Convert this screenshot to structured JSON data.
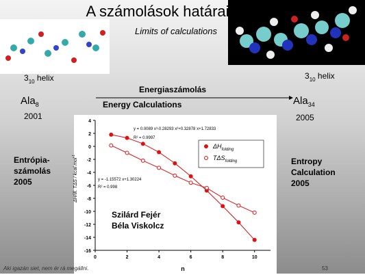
{
  "slide": {
    "title": "A számolások határai",
    "subtitle": "Limits of calculations",
    "left_helix": {
      "main": "3",
      "sub": "10",
      "after": " helix"
    },
    "right_helix": {
      "main": "3",
      "sub": "10",
      "after": " helix"
    },
    "arrow_label_hu": "Energiaszámolás",
    "arrow_label_en": "Energy Calculations",
    "left_molecule": {
      "main": "Ala",
      "sub": "8"
    },
    "left_year": "2001",
    "right_molecule": {
      "main": "Ala",
      "sub": "34"
    },
    "right_year": "2005",
    "left_note": [
      "Entrópia-",
      "számolás",
      "2005"
    ],
    "right_note": [
      "Entropy",
      "Calculation",
      "2005"
    ],
    "authors": [
      "Szilárd Fejér",
      "Béla Viskolcz"
    ],
    "footer": "Aki igazán siet, nem ér rá megállni.",
    "page_number": "53"
  },
  "chart_data": {
    "type": "scatter",
    "x_label": "n",
    "y_label": {
      "main": "ΔH/ill. TΔS / kcal mol",
      "sup": "-1"
    },
    "xlim": [
      0,
      11
    ],
    "xticks": [
      0,
      2,
      4,
      6,
      8,
      10
    ],
    "ylim": [
      -16,
      4
    ],
    "yticks": [
      4,
      2,
      0,
      -2,
      -4,
      -6,
      -8,
      -10,
      -12,
      -14,
      -16
    ],
    "annotations": [
      "y = 0.0089 x³-0.28293 x²+0.32878 x+1.72833",
      "R² = 0.9997",
      "y = -1.15572 x+1.30224",
      "R² = 0.998"
    ],
    "x": [
      1,
      2,
      3,
      4,
      5,
      6,
      7,
      8,
      9,
      10
    ],
    "series": [
      {
        "name": "ΔH",
        "name_sub": "folding",
        "color": "#e01010",
        "marker": "filled",
        "values": [
          1.8,
          1.3,
          0.4,
          -0.9,
          -2.6,
          -4.6,
          -6.8,
          -9.2,
          -11.7,
          -14.4
        ]
      },
      {
        "name": "TΔS",
        "name_sub": "folding",
        "color": "#e01010",
        "marker": "open",
        "values": [
          0.15,
          -1.0,
          -2.2,
          -3.3,
          -4.5,
          -5.6,
          -6.4,
          -7.9,
          -9.1,
          -10.2
        ]
      }
    ]
  }
}
